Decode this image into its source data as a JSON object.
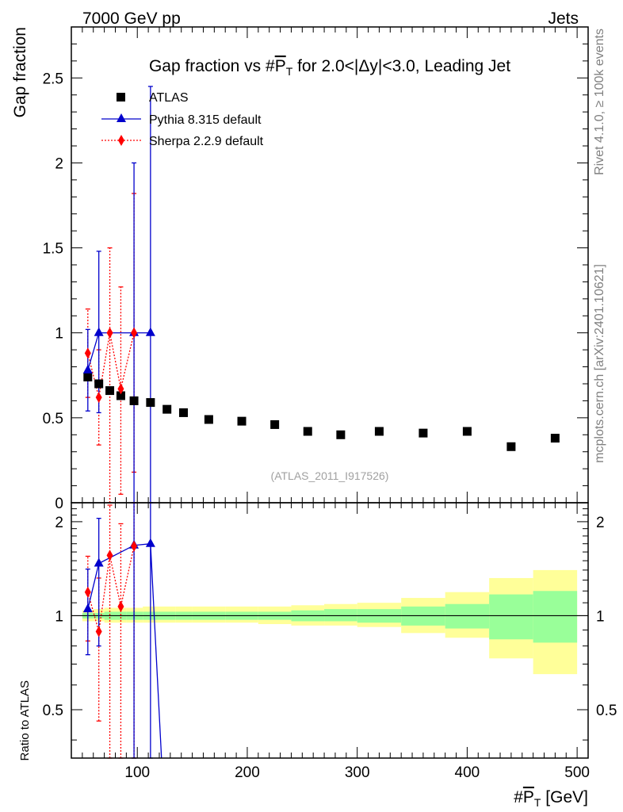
{
  "header": {
    "left": "7000 GeV pp",
    "right": "Jets"
  },
  "side": {
    "rivet": "Rivet 4.1.0, ≥ 100k events",
    "mcplots": "mcplots.cern.ch [arXiv:2401.10621]"
  },
  "chart_data": [
    {
      "type": "scatter",
      "panel": "main",
      "title_prefix": "Gap fraction vs #",
      "title_pt": "P",
      "title_sub": "T",
      "title_suffix": " for 2.0<|Δy|<3.0, Leading Jet",
      "ylabel": "Gap fraction",
      "watermark": "(ATLAS_2011_I917526)",
      "xlim": [
        40,
        510
      ],
      "ylim": [
        0,
        2.8
      ],
      "yticks": [
        "0.5",
        "1",
        "1.5",
        "2",
        "2.5"
      ],
      "ytick_values": [
        0.5,
        1,
        1.5,
        2,
        2.5
      ],
      "series": [
        {
          "name": "ATLAS",
          "color": "#000000",
          "marker": "square",
          "x": [
            55,
            65,
            75,
            85,
            97,
            112,
            127,
            142,
            165,
            195,
            225,
            255,
            285,
            320,
            360,
            400,
            440,
            480
          ],
          "y": [
            0.74,
            0.7,
            0.66,
            0.63,
            0.6,
            0.59,
            0.55,
            0.53,
            0.49,
            0.48,
            0.46,
            0.42,
            0.4,
            0.42,
            0.41,
            0.42,
            0.33,
            0.38
          ]
        },
        {
          "name": "Pythia 8.315 default",
          "color": "#0000cc",
          "marker": "triangle",
          "line": "solid",
          "x": [
            55,
            65,
            97,
            112
          ],
          "y": [
            0.78,
            1.0,
            1.0,
            1.0
          ],
          "yerr_low": [
            0.24,
            0.47,
            1.0,
            1.0
          ],
          "yerr_high": [
            0.24,
            0.48,
            1.0,
            1.45
          ]
        },
        {
          "name": "Sherpa 2.2.9 default",
          "color": "#ff0000",
          "marker": "diamond",
          "line": "dotted",
          "x": [
            55,
            65,
            75,
            85,
            97
          ],
          "y": [
            0.88,
            0.62,
            1.0,
            0.67,
            1.0
          ],
          "yerr_low": [
            0.26,
            0.28,
            1.0,
            0.62,
            0.82
          ],
          "yerr_high": [
            0.26,
            0.28,
            0.5,
            0.6,
            0.82
          ]
        }
      ]
    },
    {
      "type": "line",
      "panel": "ratio",
      "ylabel": "Ratio to ATLAS",
      "xlabel_prefix": "#",
      "xlabel_pt": "P",
      "xlabel_sub": "T",
      "xlabel_suffix": " [GeV]",
      "xlim": [
        40,
        510
      ],
      "ylim": [
        0.35,
        2.3
      ],
      "xticks": [
        "100",
        "200",
        "300",
        "400",
        "500"
      ],
      "xtick_values": [
        100,
        200,
        300,
        400,
        500
      ],
      "yticks": [
        "0.5",
        "1",
        "2"
      ],
      "ytick_values": [
        0.5,
        1,
        2
      ],
      "bands": {
        "edges": [
          50,
          60,
          70,
          80,
          90,
          105,
          120,
          135,
          150,
          180,
          210,
          240,
          270,
          300,
          340,
          380,
          420,
          460,
          500
        ],
        "yellow_low": [
          0.96,
          0.96,
          0.95,
          0.95,
          0.95,
          0.95,
          0.95,
          0.95,
          0.95,
          0.95,
          0.94,
          0.93,
          0.93,
          0.92,
          0.88,
          0.85,
          0.73,
          0.65
        ],
        "yellow_high": [
          1.04,
          1.05,
          1.06,
          1.06,
          1.06,
          1.07,
          1.07,
          1.07,
          1.07,
          1.07,
          1.07,
          1.08,
          1.09,
          1.1,
          1.14,
          1.19,
          1.32,
          1.4
        ],
        "green_low": [
          0.98,
          0.98,
          0.97,
          0.97,
          0.97,
          0.97,
          0.97,
          0.97,
          0.97,
          0.97,
          0.97,
          0.96,
          0.96,
          0.95,
          0.93,
          0.91,
          0.84,
          0.82
        ],
        "green_high": [
          1.02,
          1.02,
          1.03,
          1.03,
          1.03,
          1.03,
          1.03,
          1.03,
          1.03,
          1.03,
          1.03,
          1.04,
          1.05,
          1.05,
          1.07,
          1.09,
          1.17,
          1.2
        ]
      },
      "series": [
        {
          "name": "Pythia 8.315 default",
          "color": "#0000cc",
          "x": [
            55,
            65,
            97,
            112,
            122
          ],
          "y": [
            1.05,
            1.47,
            1.68,
            1.7,
            0.35
          ],
          "yerr_low": [
            0.3,
            0.67,
            1.4,
            1.4,
            0
          ],
          "yerr_high": [
            0.36,
            0.58,
            1.0,
            1.0,
            0
          ]
        },
        {
          "name": "Sherpa 2.2.9 default",
          "color": "#ff0000",
          "x": [
            55,
            65,
            75,
            85,
            97
          ],
          "y": [
            1.19,
            0.89,
            1.56,
            1.07,
            1.67
          ],
          "yerr_low": [
            0.36,
            0.43,
            1.3,
            0.8,
            1.4
          ],
          "yerr_high": [
            0.36,
            0.43,
            0.7,
            0.9,
            0.8
          ]
        }
      ]
    }
  ]
}
